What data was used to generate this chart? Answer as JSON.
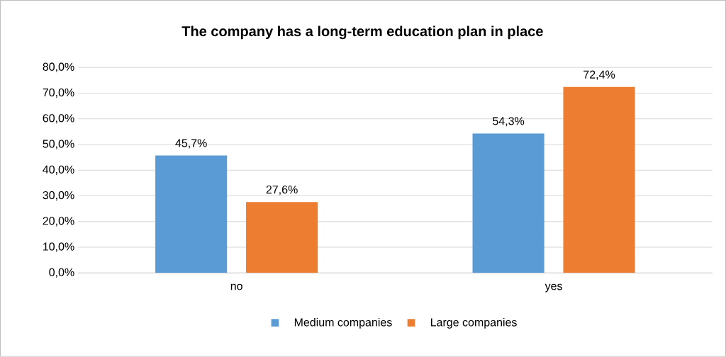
{
  "chart_data": {
    "type": "bar",
    "title": "The company has a long-term education plan in place",
    "categories": [
      "no",
      "yes"
    ],
    "series": [
      {
        "name": "Medium companies",
        "color": "#5b9bd5",
        "values": [
          45.7,
          54.3
        ],
        "value_labels": [
          "45,7%",
          "54,3%"
        ]
      },
      {
        "name": "Large companies",
        "color": "#ed7d31",
        "values": [
          27.6,
          72.4
        ],
        "value_labels": [
          "27,6%",
          "72,4%"
        ]
      }
    ],
    "ylim": [
      0,
      80
    ],
    "yticks": [
      {
        "value": 0,
        "label": "0,0%"
      },
      {
        "value": 10,
        "label": "10,0%"
      },
      {
        "value": 20,
        "label": "20,0%"
      },
      {
        "value": 30,
        "label": "30,0%"
      },
      {
        "value": 40,
        "label": "40,0%"
      },
      {
        "value": 50,
        "label": "50,0%"
      },
      {
        "value": 60,
        "label": "60,0%"
      },
      {
        "value": 70,
        "label": "70,0%"
      },
      {
        "value": 80,
        "label": "80,0%"
      }
    ],
    "grid": "y",
    "legend": "bottom"
  }
}
